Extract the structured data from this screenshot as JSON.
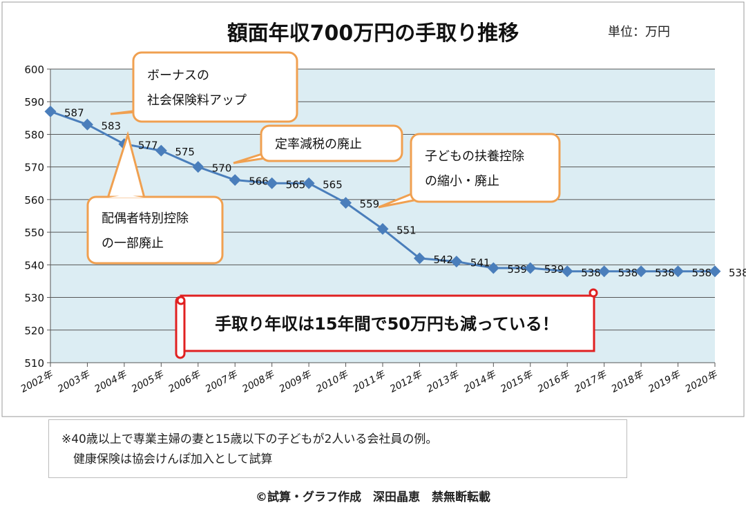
{
  "chart_data": {
    "type": "line",
    "title": "額面年収700万円の手取り推移",
    "unit_label": "単位：万円",
    "categories": [
      "2002年",
      "2003年",
      "2004年",
      "2005年",
      "2006年",
      "2007年",
      "2008年",
      "2009年",
      "2010年",
      "2011年",
      "2012年",
      "2013年",
      "2014年",
      "2015年",
      "2016年",
      "2017年",
      "2018年",
      "2019年",
      "2020年"
    ],
    "values": [
      587,
      583,
      577,
      575,
      570,
      566,
      565,
      565,
      559,
      551,
      542,
      541,
      539,
      539,
      538,
      538,
      538,
      538,
      538
    ],
    "yticks": [
      510,
      520,
      530,
      540,
      550,
      560,
      570,
      580,
      590,
      600
    ],
    "ylim": [
      510,
      600
    ],
    "grid": "horizontal",
    "line_color": "#4a7ebb",
    "plot_bg": "#dcedf3",
    "annotations": [
      {
        "lines": [
          "ボーナスの",
          "社会保険料アップ"
        ]
      },
      {
        "lines": [
          "定率減税の廃止"
        ]
      },
      {
        "lines": [
          "子どもの扶養控除",
          "の縮小・廃止"
        ]
      },
      {
        "lines": [
          "配偶者特別控除",
          "の一部廃止"
        ]
      }
    ],
    "banner": "手取り年収は15年間で50万円も減っている！",
    "callout_color": "#f0a050",
    "banner_color": "#e02020"
  },
  "note": {
    "line1": "※40歳以上で専業主婦の妻と15歳以下の子どもが2人いる会社員の例。",
    "line2": "　健康保険は協会けんぽ加入として試算"
  },
  "credit": "©試算・グラフ作成　深田晶恵　禁無断転載"
}
